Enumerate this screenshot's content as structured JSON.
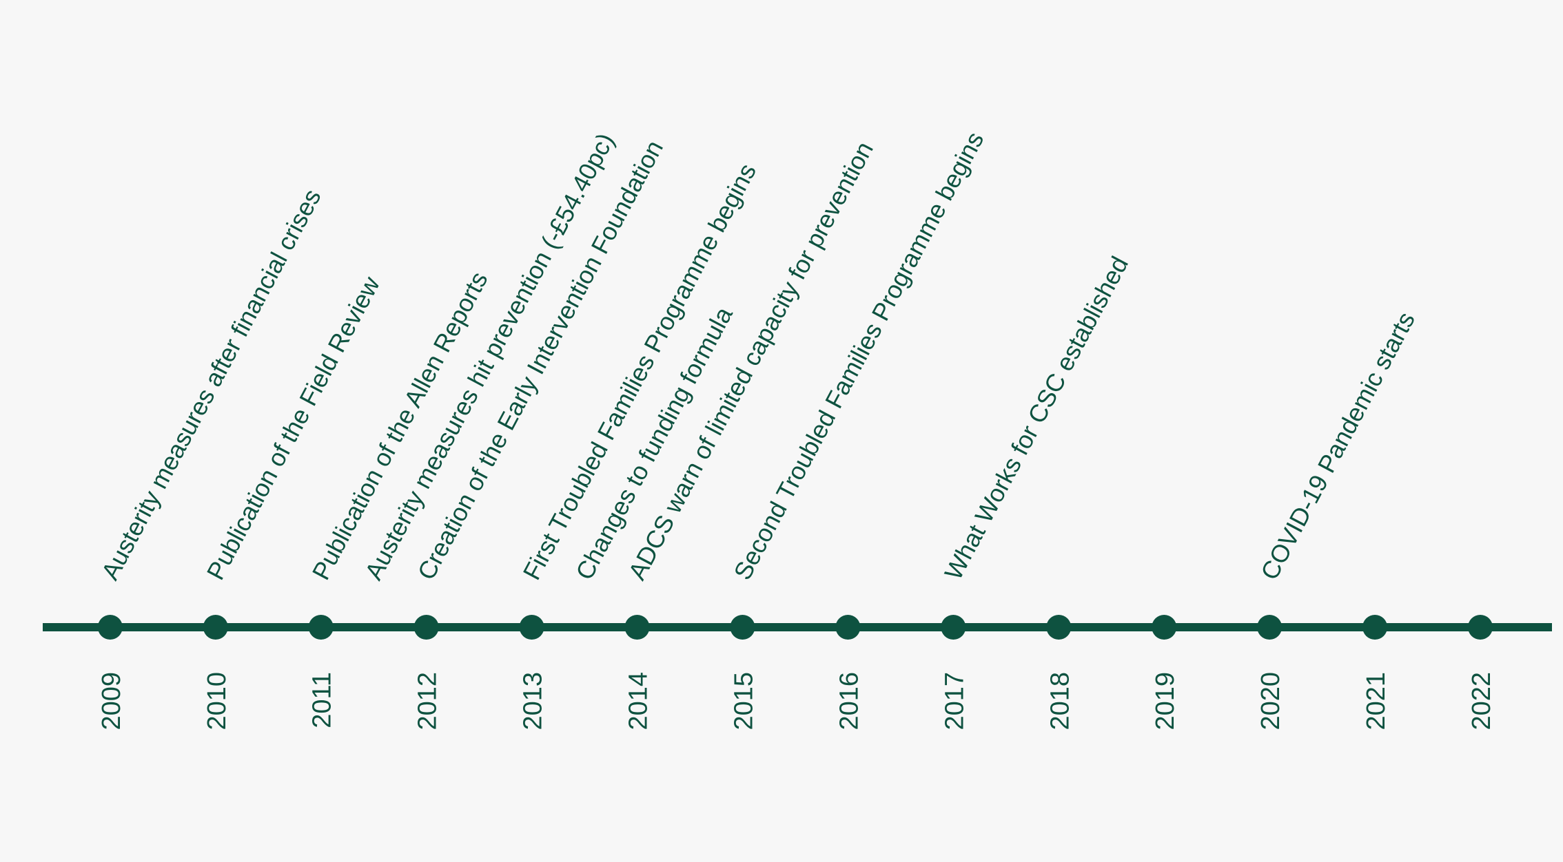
{
  "colors": {
    "background": "#f7f7f7",
    "primary": "#0e5240"
  },
  "chart_data": {
    "type": "timeline",
    "x_range": [
      2008.36,
      2022.68
    ],
    "years": [
      2009,
      2010,
      2011,
      2012,
      2013,
      2014,
      2015,
      2016,
      2017,
      2018,
      2019,
      2020,
      2021,
      2022
    ],
    "events": [
      {
        "x": 2009.0,
        "label": "Austerity measures after financial crises"
      },
      {
        "x": 2010.0,
        "label": "Publication of the Field Review"
      },
      {
        "x": 2011.0,
        "label": "Publication of the Allen Reports"
      },
      {
        "x": 2011.5,
        "label": "Austerity measures hit prevention (-£54.40pc)"
      },
      {
        "x": 2012.0,
        "label": "Creation of the Early Intervention Foundation"
      },
      {
        "x": 2013.0,
        "label": "First Troubled Families Programme begins"
      },
      {
        "x": 2013.5,
        "label": "Changes to funding formula"
      },
      {
        "x": 2014.0,
        "label": "ADCS warn of limited capacity for prevention"
      },
      {
        "x": 2015.0,
        "label": "Second Troubled Families Programme begins"
      },
      {
        "x": 2017.0,
        "label": "What Works for CSC established"
      },
      {
        "x": 2020.0,
        "label": "COVID-19 Pandemic starts"
      }
    ]
  }
}
